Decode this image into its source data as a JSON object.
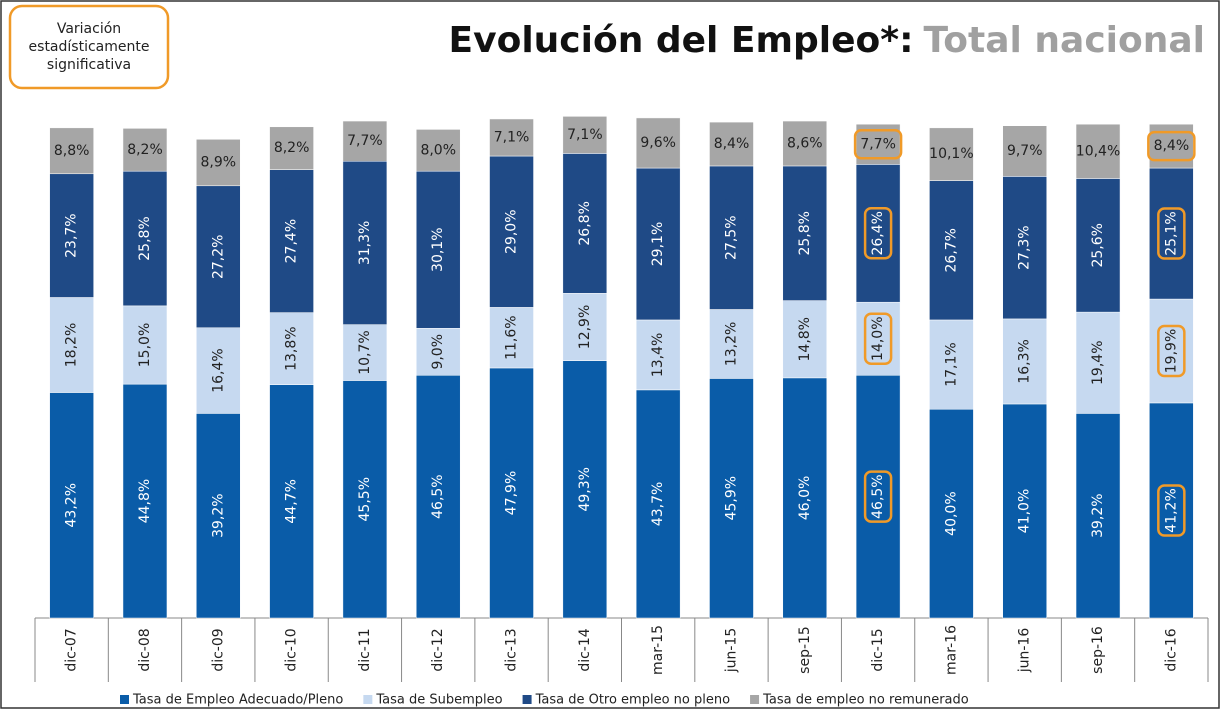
{
  "chart_data": {
    "type": "stacked_bar",
    "title": "Evolución del Empleo*:",
    "subtitle": "Total nacional",
    "annotation": "Variación estadísticamente significativa",
    "highlighted": [
      "dic-15",
      "dic-16"
    ],
    "highlight_color": "#f09a28",
    "categories": [
      "dic-07",
      "dic-08",
      "dic-09",
      "dic-10",
      "dic-11",
      "dic-12",
      "dic-13",
      "dic-14",
      "mar-15",
      "jun-15",
      "sep-15",
      "dic-15",
      "mar-16",
      "jun-16",
      "sep-16",
      "dic-16"
    ],
    "series": [
      {
        "name": "Tasa de Empleo Adecuado/Pleno",
        "color": "#0a5ca8",
        "values": [
          43.2,
          44.8,
          39.2,
          44.7,
          45.5,
          46.5,
          47.9,
          49.3,
          43.7,
          45.9,
          46.0,
          46.5,
          40.0,
          41.0,
          39.2,
          41.2
        ],
        "value_labels": [
          "43,2%",
          "44,8%",
          "39,2%",
          "44,7%",
          "45,5%",
          "46,5%",
          "47,9%",
          "49,3%",
          "43,7%",
          "45,9%",
          "46,0%",
          "46,5%",
          "40,0%",
          "41,0%",
          "39,2%",
          "41,2%"
        ]
      },
      {
        "name": "Tasa de Subempleo",
        "color": "#c6d9f0",
        "values": [
          18.2,
          15.0,
          16.4,
          13.8,
          10.7,
          9.0,
          11.6,
          12.9,
          13.4,
          13.2,
          14.8,
          14.0,
          17.1,
          16.3,
          19.4,
          19.9
        ],
        "value_labels": [
          "18,2%",
          "15,0%",
          "16,4%",
          "13,8%",
          "10,7%",
          "9,0%",
          "11,6%",
          "12,9%",
          "13,4%",
          "13,2%",
          "14,8%",
          "14,0%",
          "17,1%",
          "16,3%",
          "19,4%",
          "19,9%"
        ]
      },
      {
        "name": "Tasa de Otro empleo no pleno",
        "color": "#1f4a86",
        "values": [
          23.7,
          25.8,
          27.2,
          27.4,
          31.3,
          30.1,
          29.0,
          26.8,
          29.1,
          27.5,
          25.8,
          26.4,
          26.7,
          27.3,
          25.6,
          25.1
        ],
        "value_labels": [
          "23,7%",
          "25,8%",
          "27,2%",
          "27,4%",
          "31,3%",
          "30,1%",
          "29,0%",
          "26,8%",
          "29,1%",
          "27,5%",
          "25,8%",
          "26,4%",
          "26,7%",
          "27,3%",
          "25,6%",
          "25,1%"
        ]
      },
      {
        "name": "Tasa de empleo no remunerado",
        "color": "#a6a6a6",
        "values": [
          8.8,
          8.2,
          8.9,
          8.2,
          7.7,
          8.0,
          7.1,
          7.1,
          9.6,
          8.4,
          8.6,
          7.7,
          10.1,
          9.7,
          10.4,
          8.4
        ],
        "value_labels": [
          "8,8%",
          "8,2%",
          "8,9%",
          "8,2%",
          "7,7%",
          "8,0%",
          "7,1%",
          "7,1%",
          "9,6%",
          "8,4%",
          "8,6%",
          "7,7%",
          "10,1%",
          "9,7%",
          "10,4%",
          "8,4%"
        ]
      }
    ]
  }
}
